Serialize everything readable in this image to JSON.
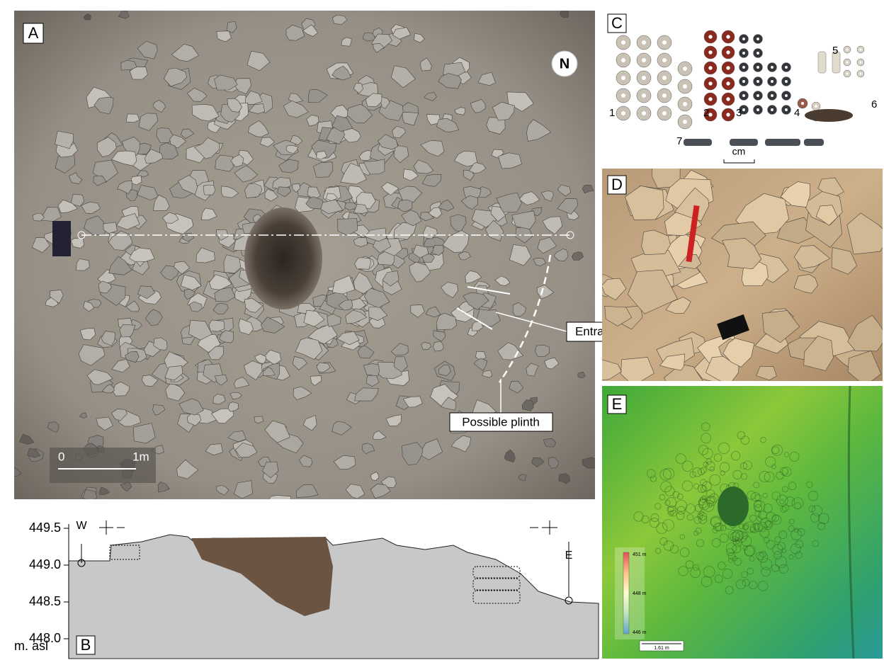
{
  "panels": {
    "A": {
      "label": "A",
      "north": "N",
      "scale": {
        "start": "0",
        "end": "1m"
      },
      "annotations": [
        "Entrance",
        "Possible plinth"
      ]
    },
    "B": {
      "label": "B",
      "yticks": [
        449.5,
        {
          "value": 449.0,
          "label": "449.0"
        },
        448.5,
        {
          "value": 448.0,
          "label": "448.0"
        }
      ],
      "unit": "m. asl",
      "west": "W",
      "east": "E"
    },
    "C": {
      "label": "C",
      "groups": [
        "1",
        "2",
        "3",
        "4",
        "5",
        "6",
        "7"
      ],
      "scale": "cm"
    },
    "D": {
      "label": "D"
    },
    "E": {
      "label": "E",
      "legend": [
        "451 m",
        "448 m",
        "446 m"
      ],
      "scale": "1.61 m"
    }
  }
}
